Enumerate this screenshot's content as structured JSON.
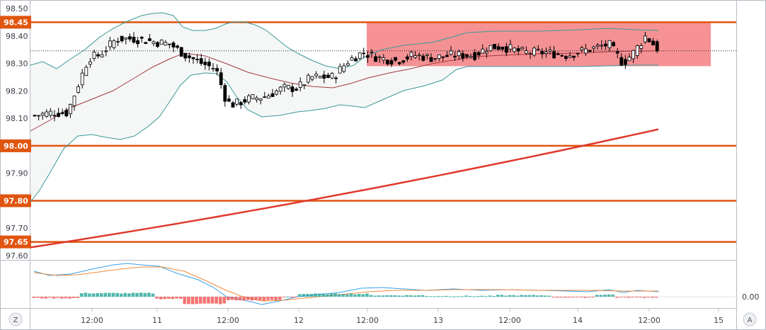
{
  "chart_data": [
    {
      "type": "candlestick",
      "title": "",
      "ylim": [
        97.6,
        98.5
      ],
      "y_ticks": [
        "98.50",
        "98.40",
        "98.30",
        "98.20",
        "98.10",
        "98.00",
        "97.90",
        "97.80",
        "97.70",
        "97.60"
      ],
      "x_ticks": [
        "12:00",
        "11",
        "12:00",
        "12",
        "12:00",
        "13",
        "12:00",
        "14",
        "12:00",
        "15"
      ],
      "horizontal_levels": [
        {
          "label": "98.45",
          "value": 98.45
        },
        {
          "label": "98.00",
          "value": 98.0
        },
        {
          "label": "97.80",
          "value": 97.8
        },
        {
          "label": "97.65",
          "value": 97.65
        }
      ],
      "consolidation_zone": {
        "y_low": 98.29,
        "y_high": 98.45,
        "start": "12 12:00",
        "end": "14 end"
      },
      "dotted_reference_level": 98.346,
      "series": [
        {
          "kind": "bollinger-bands",
          "color": "#3c9a98"
        },
        {
          "kind": "bollinger-basis",
          "color": "#a33a3f"
        },
        {
          "kind": "moving-average-long",
          "color": "#e0392b",
          "start_value": 97.63,
          "end_value": 98.06
        }
      ],
      "grid": false,
      "colors": {
        "level_line": "#e0550f",
        "zone": "#f47a7e",
        "bull": "#ffffff",
        "bear": "#000000"
      }
    },
    {
      "type": "macd",
      "y_ticks": [
        "0.00"
      ],
      "colors": {
        "macd_line": "#3aa0e8",
        "signal_line": "#f08a3c",
        "hist_up": "#26a69a",
        "hist_down": "#ef5350"
      }
    }
  ],
  "corner_buttons": {
    "left": "Z",
    "right": "A"
  }
}
